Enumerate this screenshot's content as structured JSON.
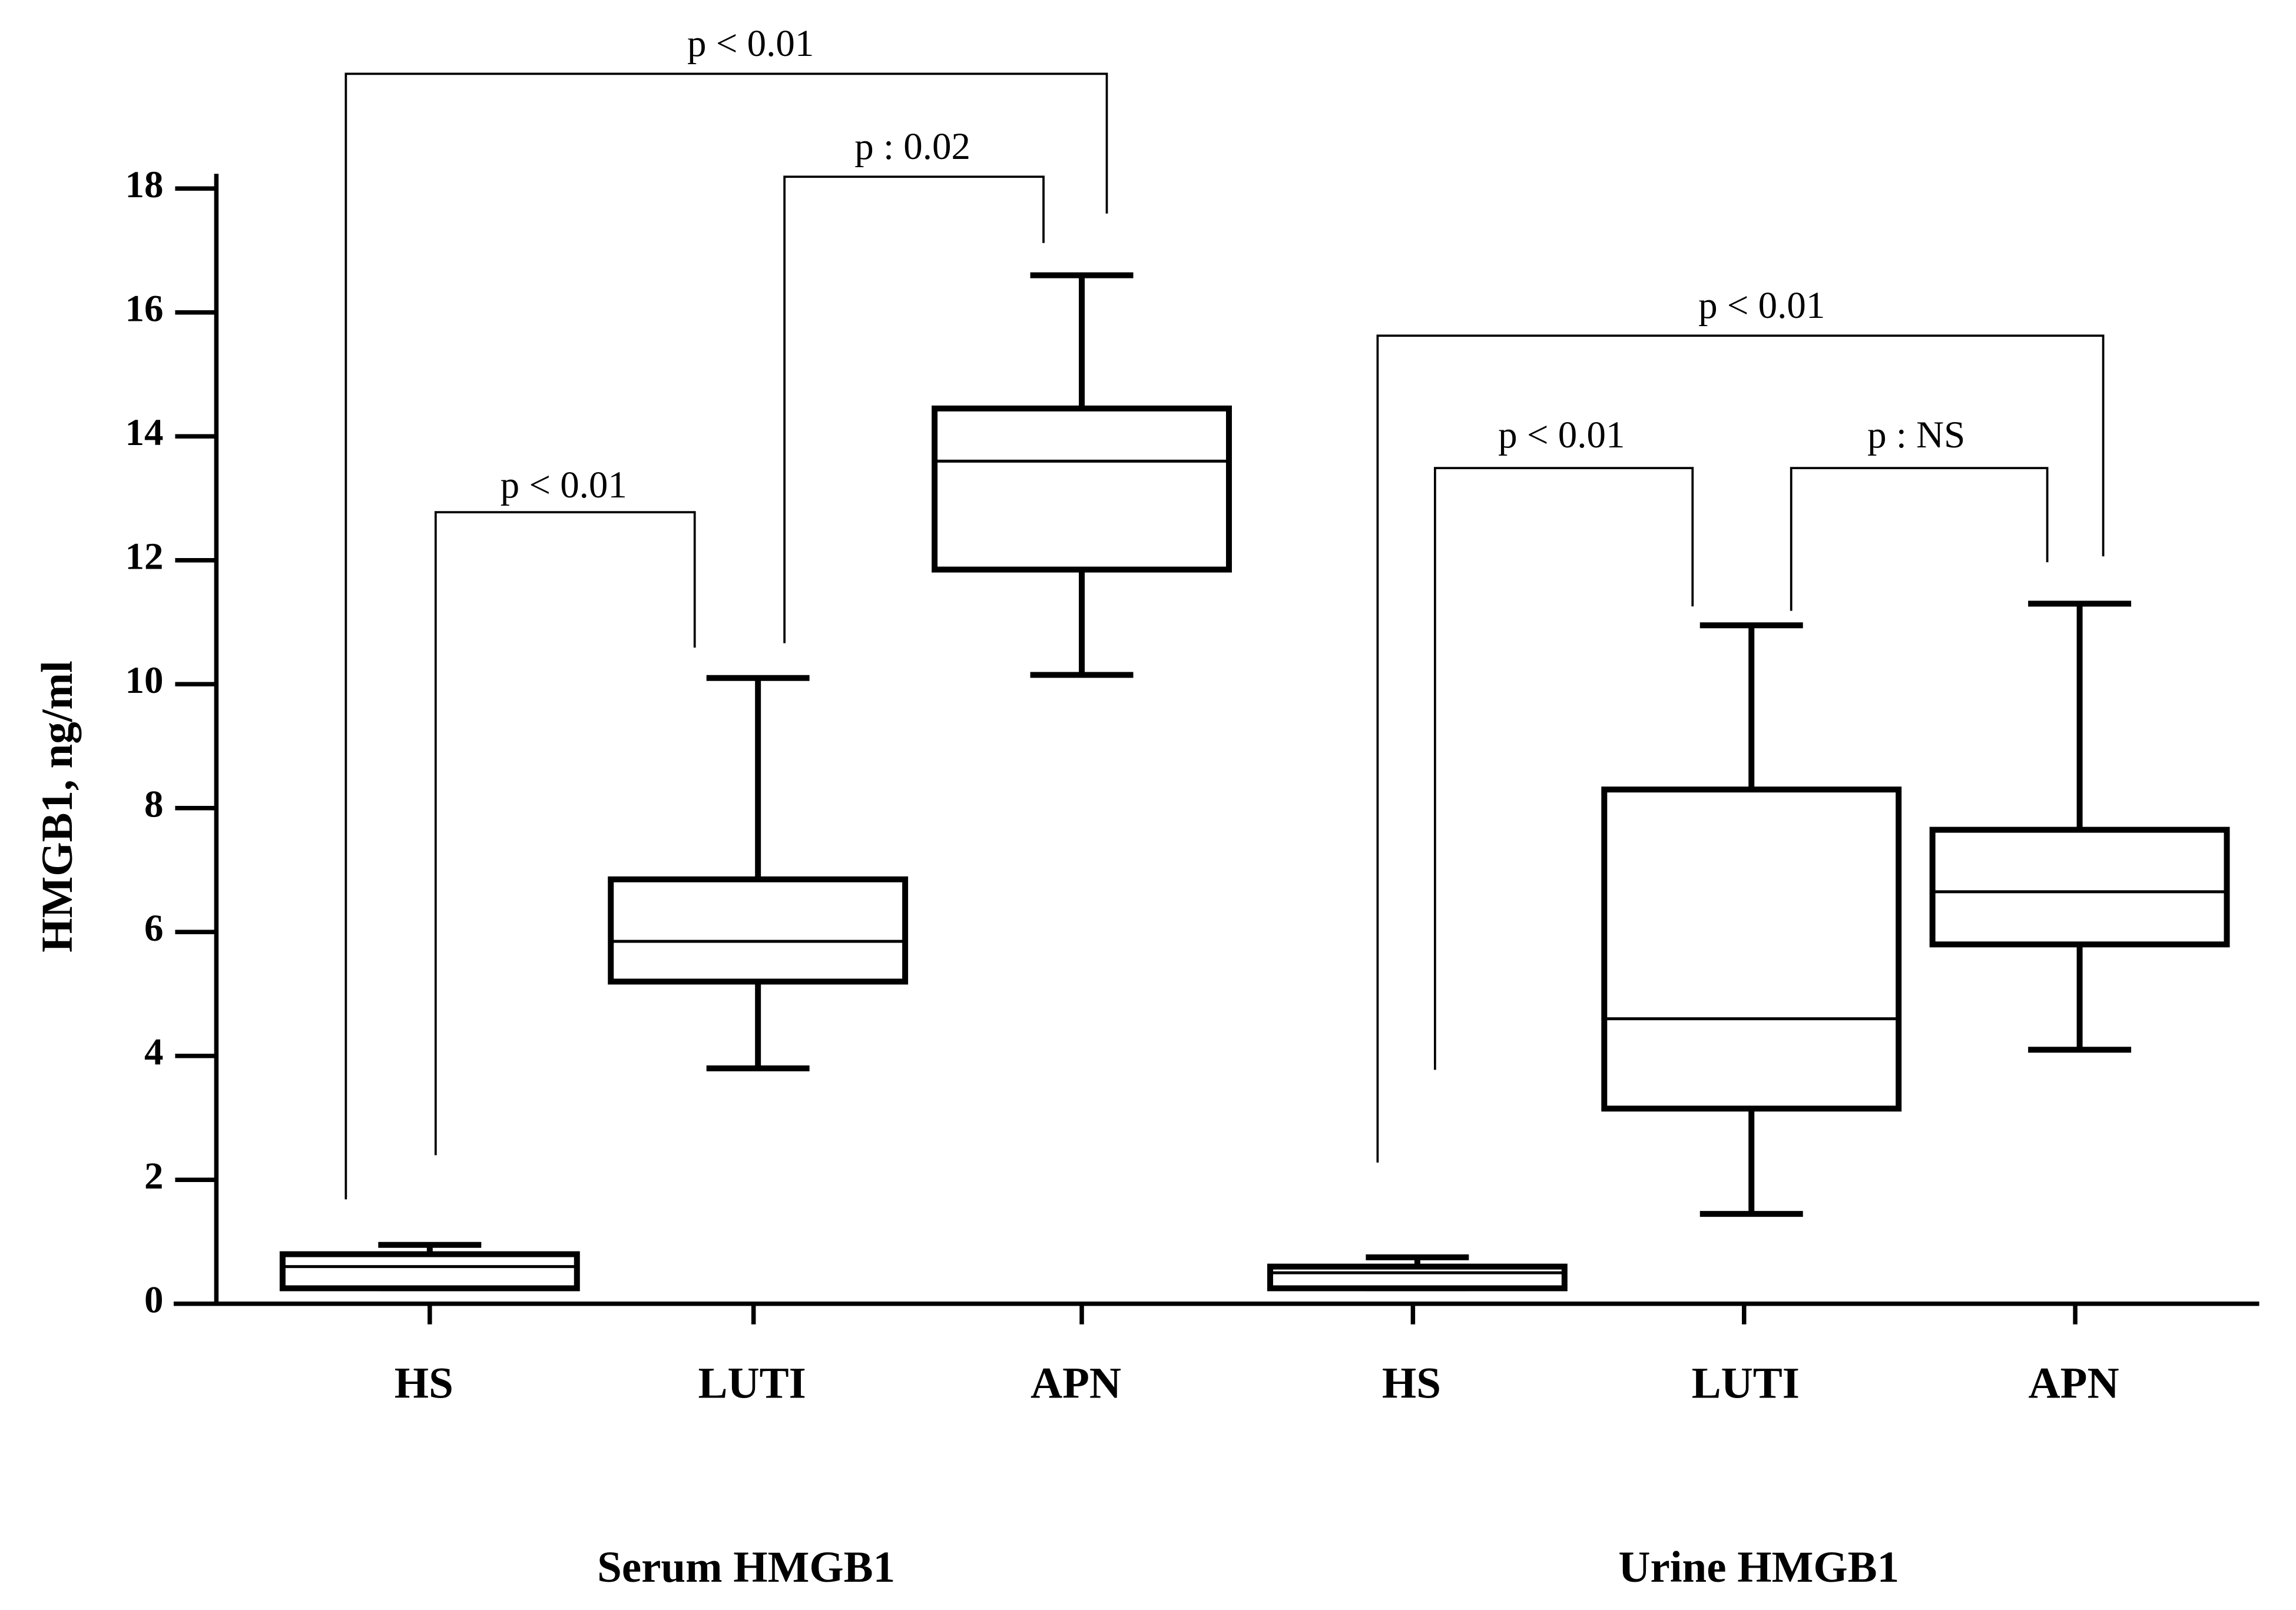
{
  "chart_data": {
    "type": "box",
    "y_label": "HMGB1, ng/ml",
    "categories": [
      "HS",
      "LUTI",
      "APN",
      "HS",
      "LUTI",
      "APN"
    ],
    "groups": [
      "Serum HMGB1",
      "Urine HMGB1"
    ],
    "min": [
      0.25,
      3.8,
      10.15,
      0.25,
      1.45,
      4.1
    ],
    "q1": [
      0.25,
      5.2,
      11.85,
      0.25,
      3.15,
      5.8
    ],
    "median": [
      0.6,
      5.85,
      13.6,
      0.5,
      4.6,
      6.65
    ],
    "q3": [
      0.8,
      6.85,
      14.45,
      0.6,
      8.3,
      7.65
    ],
    "max": [
      0.95,
      10.1,
      16.6,
      0.75,
      10.95,
      11.3
    ],
    "color": "#000000",
    "ylim": [
      0,
      18
    ],
    "yticks": [
      0,
      2,
      4,
      6,
      8,
      10,
      12,
      14,
      16,
      18
    ],
    "annotations": [
      {
        "label": "p < 0.01"
      },
      {
        "label": "p < 0.01"
      },
      {
        "label": "p : 0.02"
      },
      {
        "label": "p < 0.01"
      },
      {
        "label": "p < 0.01"
      },
      {
        "label": "p : NS"
      }
    ]
  }
}
